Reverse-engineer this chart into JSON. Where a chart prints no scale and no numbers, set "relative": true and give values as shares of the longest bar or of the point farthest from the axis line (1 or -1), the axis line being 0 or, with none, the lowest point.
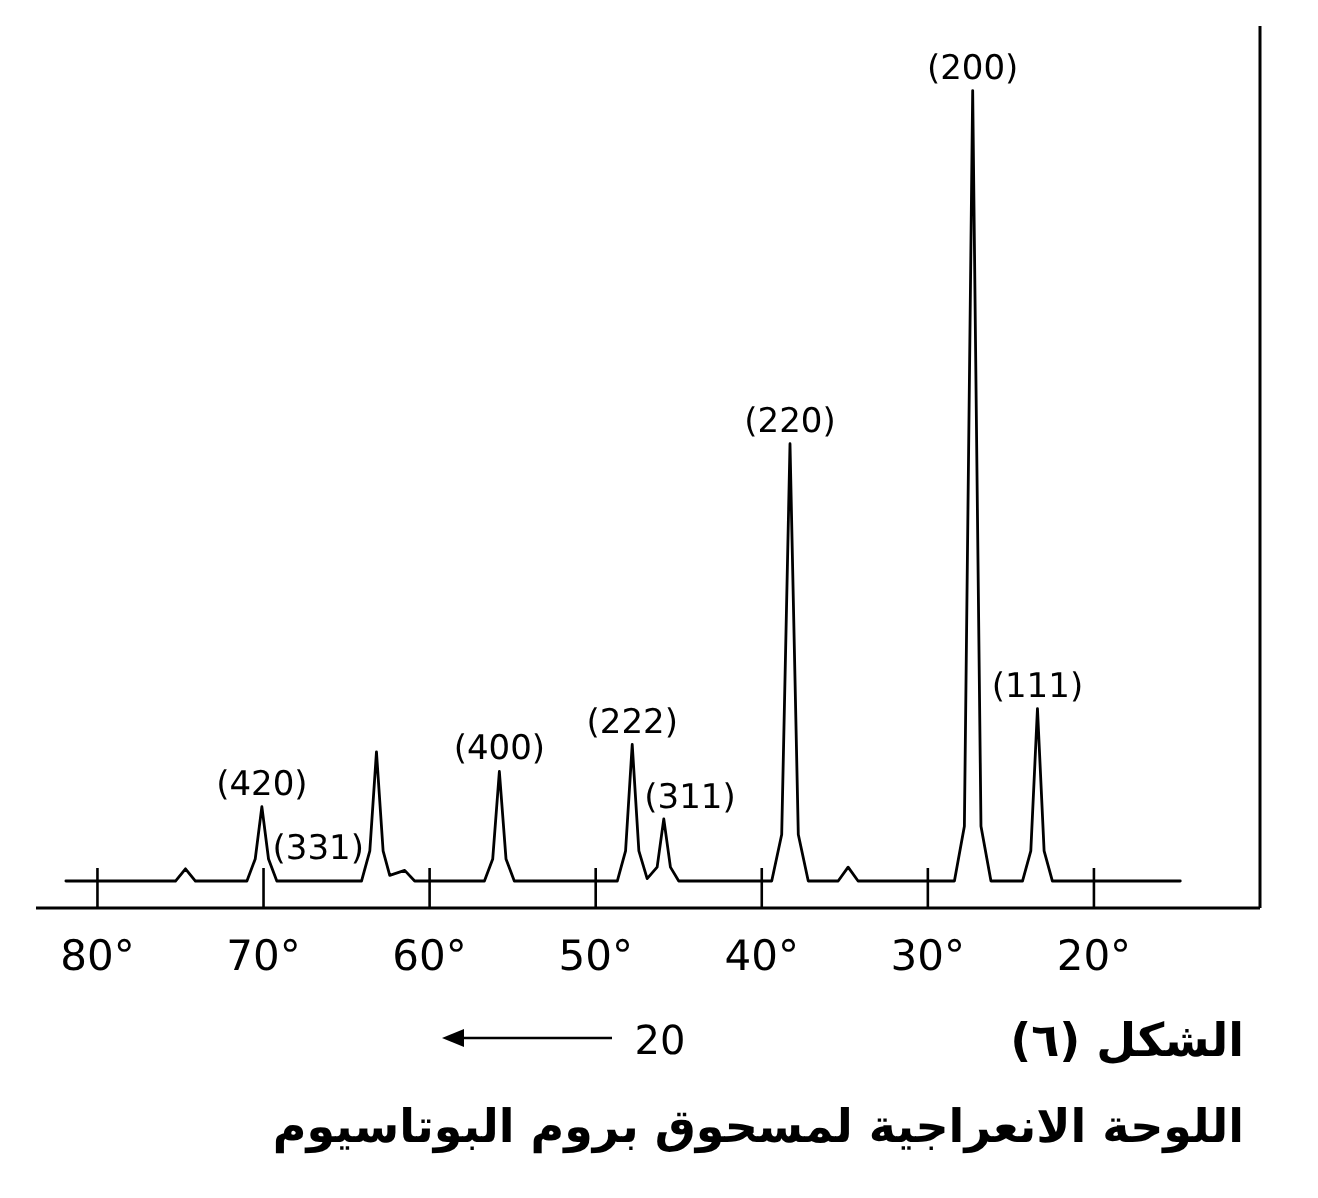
{
  "chart_data": {
    "type": "line",
    "relative": true,
    "title": "الشكل (٦)",
    "subtitle": "اللوحة الانعراجية لمسحوق بروم البوتاسيوم",
    "xlabel": "20",
    "xlim": [
      83.7,
      10
    ],
    "xticks": [
      {
        "value": 80,
        "label": "80°"
      },
      {
        "value": 70,
        "label": "70°"
      },
      {
        "value": 60,
        "label": "60°"
      },
      {
        "value": 50,
        "label": "50°"
      },
      {
        "value": 40,
        "label": "40°"
      },
      {
        "value": 30,
        "label": "30°"
      },
      {
        "value": 20,
        "label": "20°"
      }
    ],
    "x": [
      81.9,
      75.3,
      74.7,
      74.1,
      71.0,
      70.5,
      70.1,
      69.7,
      69.2,
      64.1,
      63.6,
      63.2,
      62.8,
      62.4,
      61.5,
      60.9,
      56.7,
      56.2,
      55.8,
      55.4,
      54.9,
      48.7,
      48.2,
      47.8,
      47.4,
      46.9,
      46.3,
      45.9,
      45.5,
      45.0,
      39.4,
      38.8,
      38.3,
      37.8,
      37.2,
      35.4,
      34.8,
      34.2,
      28.4,
      27.8,
      27.3,
      26.8,
      26.2,
      24.3,
      23.8,
      23.4,
      23.0,
      22.5,
      14.8
    ],
    "series": [
      {
        "color": "#000000",
        "values": [
          0.033,
          0.033,
          0.048,
          0.033,
          0.033,
          0.06,
          0.124,
          0.06,
          0.033,
          0.033,
          0.07,
          0.191,
          0.07,
          0.04,
          0.046,
          0.033,
          0.033,
          0.06,
          0.167,
          0.06,
          0.033,
          0.033,
          0.07,
          0.2,
          0.07,
          0.036,
          0.05,
          0.109,
          0.05,
          0.033,
          0.033,
          0.09,
          0.568,
          0.09,
          0.033,
          0.033,
          0.05,
          0.033,
          0.033,
          0.1,
          1.0,
          0.1,
          0.033,
          0.033,
          0.07,
          0.244,
          0.07,
          0.033,
          0.033
        ]
      }
    ],
    "annotations": [
      {
        "text": "(200)",
        "x": 27.3,
        "y": 1.0
      },
      {
        "text": "(220)",
        "x": 38.3,
        "y": 0.568
      },
      {
        "text": "(111)",
        "x": 23.4,
        "y": 0.244
      },
      {
        "text": "(222)",
        "x": 47.8,
        "y": 0.2
      },
      "(311)",
      {
        "text": "(400)",
        "x": 55.8,
        "y": 0.167
      },
      {
        "text": "(420)",
        "x": 70.1,
        "y": 0.124
      },
      {
        "text": "(331)",
        "x": 66.7,
        "y": 0.045
      }
    ]
  }
}
